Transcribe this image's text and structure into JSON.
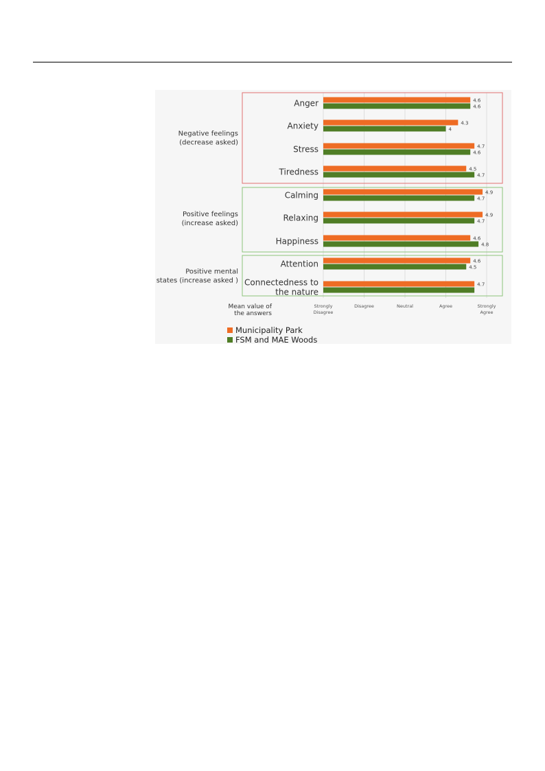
{
  "chart_data": {
    "type": "bar",
    "orientation": "horizontal",
    "categories": [
      "Anger",
      "Anxiety",
      "Stress",
      "Tiredness",
      "Calming",
      "Relaxing",
      "Happiness",
      "Attention",
      "Connectedness to the nature"
    ],
    "category_lines": [
      [
        "Anger"
      ],
      [
        "Anxiety"
      ],
      [
        "Stress"
      ],
      [
        "Tiredness"
      ],
      [
        "Calming"
      ],
      [
        "Relaxing"
      ],
      [
        "Happiness"
      ],
      [
        "Attention"
      ],
      [
        "Connectedness to",
        "the nature"
      ]
    ],
    "series": [
      {
        "name": "Municipality Park",
        "color": "#ee6c24",
        "values": [
          4.6,
          4.3,
          4.7,
          4.5,
          4.9,
          4.9,
          4.6,
          4.6,
          4.7
        ],
        "labels": [
          "4.6",
          "4.3",
          "4.7",
          "4.5",
          "4.9",
          "4.9",
          "4.6",
          "4.6",
          "4.7"
        ]
      },
      {
        "name": "FSM and MAE Woods",
        "color": "#4f7d25",
        "values": [
          4.6,
          4.0,
          4.6,
          4.7,
          4.7,
          4.7,
          4.8,
          4.5,
          4.7
        ],
        "labels": [
          "4.6",
          "4",
          "4.6",
          "4.7",
          "4.7",
          "4.7",
          "4.8",
          "4.5",
          ""
        ]
      }
    ],
    "groups": [
      {
        "lines": [
          "Negative feelings",
          "(decrease asked)"
        ],
        "color": "#e07070",
        "categories": [
          0,
          1,
          2,
          3
        ]
      },
      {
        "lines": [
          "Positive feelings",
          "(increase asked)"
        ],
        "color": "#8cc47a",
        "categories": [
          4,
          5,
          6
        ]
      },
      {
        "lines": [
          "Positive mental",
          "states (increase asked )"
        ],
        "color": "#8cc47a",
        "categories": [
          7,
          8
        ]
      }
    ],
    "x_ticks": [
      {
        "value": 1,
        "lines": [
          "Strongly",
          "Disagree"
        ]
      },
      {
        "value": 2,
        "lines": [
          "Disagree"
        ]
      },
      {
        "value": 3,
        "lines": [
          "Neutral"
        ]
      },
      {
        "value": 4,
        "lines": [
          "Agree"
        ]
      },
      {
        "value": 5,
        "lines": [
          "Strongly",
          "Agree"
        ]
      }
    ],
    "xlim": [
      1,
      5
    ],
    "xlabel_lines": [
      "Mean value of",
      "the answers"
    ],
    "grid": true,
    "legend_position": "bottom"
  }
}
